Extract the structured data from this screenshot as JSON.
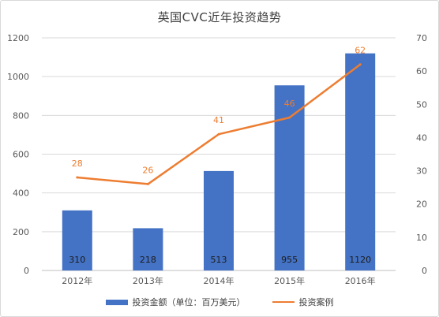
{
  "colors": {
    "bar": "#4472c4",
    "line": "#ed7d31",
    "grid": "#d9d9d9",
    "axis": "#bfbfbf"
  },
  "chart_data": {
    "type": "bar",
    "title": "英国CVC近年投资趋势",
    "categories": [
      "2012年",
      "2013年",
      "2014年",
      "2015年",
      "2016年"
    ],
    "series": [
      {
        "name": "投资金额（单位：百万美元）",
        "type": "bar",
        "axis": "left",
        "values": [
          310,
          218,
          513,
          955,
          1120
        ]
      },
      {
        "name": "投资案例",
        "type": "line",
        "axis": "right",
        "values": [
          28,
          26,
          41,
          46,
          62
        ]
      }
    ],
    "ylim_left": [
      0,
      1200
    ],
    "yticks_left": [
      0,
      200,
      400,
      600,
      800,
      1000,
      1200
    ],
    "ylim_right": [
      0,
      70
    ],
    "yticks_right": [
      0,
      10,
      20,
      30,
      40,
      50,
      60,
      70
    ],
    "grid": true,
    "legend": "bottom"
  }
}
